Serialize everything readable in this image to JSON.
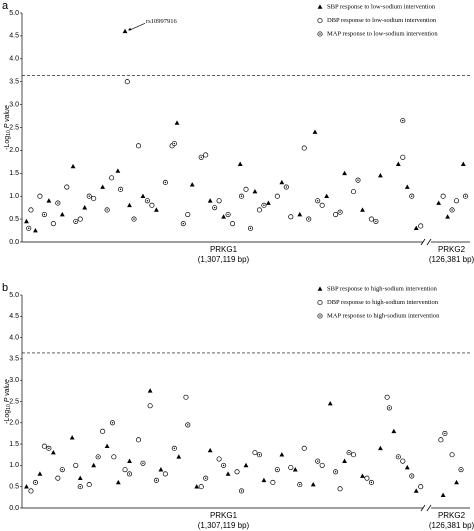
{
  "chart_data": [
    {
      "type": "scatter",
      "panel_label": "a",
      "ylabel": {
        "prefix": "-Log",
        "sub": "10",
        "main": "P value"
      },
      "xlim": [
        0,
        100
      ],
      "ylim": [
        0,
        5
      ],
      "yticks": [
        {
          "value": 0,
          "label": "0.0"
        },
        {
          "value": 0.5,
          "label": "0.5"
        },
        {
          "value": 1,
          "label": "1.0"
        },
        {
          "value": 1.5,
          "label": "1.5"
        },
        {
          "value": 2,
          "label": "2.0"
        },
        {
          "value": 2.5,
          "label": "2.5"
        },
        {
          "value": 3,
          "label": "3.0"
        },
        {
          "value": 3.5,
          "label": "3.5"
        },
        {
          "value": 4,
          "label": "4.0"
        },
        {
          "value": 4.5,
          "label": "4.5"
        },
        {
          "value": 5,
          "label": "5.0"
        }
      ],
      "threshold": 3.64,
      "genes": [
        {
          "name": "PRKG1",
          "size": "(1,307,119 bp)"
        },
        {
          "name": "PRKG2",
          "size": "(126,381 bp)"
        }
      ],
      "annotation": {
        "text": "rs10997916",
        "x": 23,
        "y": 4.6
      },
      "legend": "upper right",
      "series": [
        {
          "name": "SBP response to low-sodium intervention",
          "marker": "triangle",
          "color": "#000000",
          "x": [
            1,
            3,
            6,
            9,
            11.4,
            14,
            18,
            21.4,
            23,
            24,
            27,
            30,
            34.6,
            38,
            42,
            45,
            48.7,
            52,
            55,
            58,
            62,
            65.4,
            68,
            72,
            76,
            80,
            84,
            86,
            88,
            93,
            95,
            98.5
          ],
          "values": [
            0.45,
            0.25,
            0.9,
            0.6,
            1.65,
            0.75,
            1.2,
            1.55,
            4.6,
            0.8,
            1.0,
            0.7,
            2.6,
            1.25,
            0.9,
            0.55,
            1.7,
            1.1,
            0.85,
            1.3,
            0.6,
            2.4,
            1.0,
            1.5,
            0.7,
            1.45,
            1.7,
            1.2,
            0.3,
            0.85,
            0.55,
            1.7
          ]
        },
        {
          "name": "DBP response to low-sodium intervention",
          "marker": "circle",
          "color": "#000000",
          "x": [
            2,
            4,
            7,
            10,
            13,
            16,
            20,
            23.5,
            26,
            29,
            33.5,
            37,
            41,
            44,
            47,
            50,
            53,
            57,
            60,
            63,
            67,
            70,
            74,
            78,
            85,
            89,
            94,
            97
          ],
          "values": [
            0.7,
            1.0,
            0.4,
            1.2,
            0.5,
            0.95,
            1.4,
            3.5,
            2.1,
            0.8,
            2.1,
            0.6,
            1.9,
            0.9,
            0.4,
            1.15,
            0.7,
            1.0,
            0.55,
            2.05,
            0.8,
            0.6,
            1.1,
            0.5,
            1.85,
            0.35,
            1.0,
            0.9
          ]
        },
        {
          "name": "MAP response to low-sodium intervention",
          "marker": "dotted-circle",
          "color": "#000000",
          "x": [
            1.5,
            5,
            8,
            12,
            15,
            19,
            22,
            25,
            28,
            32,
            34,
            36,
            40,
            43,
            46,
            49,
            51,
            54,
            59,
            64,
            66,
            71,
            75,
            79,
            85,
            87,
            96,
            99
          ],
          "values": [
            0.3,
            0.6,
            0.85,
            0.45,
            1.0,
            0.7,
            1.15,
            0.5,
            0.9,
            1.3,
            2.15,
            0.4,
            1.85,
            0.75,
            0.6,
            1.0,
            0.3,
            0.8,
            1.2,
            0.5,
            0.9,
            0.65,
            1.35,
            0.45,
            2.65,
            1.0,
            0.7,
            1.0
          ]
        }
      ]
    },
    {
      "type": "scatter",
      "panel_label": "b",
      "ylabel": {
        "prefix": "-Log",
        "sub": "10",
        "main": "P value"
      },
      "xlim": [
        0,
        100
      ],
      "ylim": [
        0,
        5
      ],
      "yticks": [
        {
          "value": 0,
          "label": "0.0"
        },
        {
          "value": 0.5,
          "label": "0.5"
        },
        {
          "value": 1,
          "label": "1.0"
        },
        {
          "value": 1.5,
          "label": "1.5"
        },
        {
          "value": 2,
          "label": "2.0"
        },
        {
          "value": 2.5,
          "label": "2.5"
        },
        {
          "value": 3,
          "label": "3.0"
        },
        {
          "value": 3.5,
          "label": "3.5"
        },
        {
          "value": 4,
          "label": "4.0"
        },
        {
          "value": 4.5,
          "label": "4.5"
        },
        {
          "value": 5,
          "label": "5.0"
        }
      ],
      "threshold": 3.64,
      "genes": [
        {
          "name": "PRKG1",
          "size": "(1,307,119 bp)"
        },
        {
          "name": "PRKG2",
          "size": "(126,381 bp)"
        }
      ],
      "legend": "upper right",
      "series": [
        {
          "name": "SBP response to high-sodium intervention",
          "marker": "triangle",
          "color": "#000000",
          "x": [
            1,
            4,
            7,
            11.2,
            13,
            16,
            19,
            21.5,
            24,
            28.6,
            31,
            35,
            39,
            42,
            46,
            50,
            54,
            58,
            61,
            65,
            68.8,
            72,
            76,
            80,
            83,
            86,
            88,
            94,
            97
          ],
          "values": [
            0.5,
            0.8,
            1.3,
            1.65,
            0.7,
            1.0,
            1.45,
            0.6,
            1.1,
            2.75,
            0.9,
            1.2,
            0.5,
            1.35,
            0.8,
            1.0,
            0.65,
            1.25,
            0.9,
            0.55,
            2.45,
            1.1,
            0.75,
            1.4,
            1.8,
            0.95,
            0.4,
            0.3,
            0.6
          ]
        },
        {
          "name": "DBP response to high-sodium intervention",
          "marker": "circle",
          "color": "#000000",
          "x": [
            2,
            5,
            8,
            12,
            15,
            18,
            20.5,
            23,
            26,
            28.6,
            32,
            36.6,
            40,
            44,
            48,
            52,
            56,
            60,
            63,
            67,
            71,
            74,
            77,
            81.5,
            85,
            89,
            93.5,
            96
          ],
          "values": [
            0.4,
            1.45,
            0.7,
            1.0,
            0.55,
            1.8,
            1.2,
            0.9,
            1.6,
            2.4,
            0.8,
            2.6,
            0.5,
            1.15,
            0.85,
            1.3,
            0.6,
            0.95,
            1.4,
            1.0,
            0.45,
            1.25,
            0.7,
            2.6,
            1.1,
            0.5,
            1.6,
            1.25
          ]
        },
        {
          "name": "MAP response to high-sodium intervention",
          "marker": "dotted-circle",
          "color": "#000000",
          "x": [
            3,
            6,
            9,
            13,
            17,
            20.2,
            24,
            27,
            30,
            34,
            37,
            41,
            45,
            49,
            53,
            57,
            62,
            66,
            70,
            73,
            78,
            82,
            84,
            87,
            94.4,
            98
          ],
          "values": [
            0.6,
            1.4,
            0.9,
            0.5,
            1.2,
            2.0,
            0.8,
            1.05,
            0.65,
            1.4,
            1.95,
            0.7,
            1.0,
            0.4,
            1.25,
            0.9,
            0.55,
            1.1,
            0.85,
            1.3,
            0.6,
            2.35,
            1.2,
            0.75,
            1.75,
            0.9
          ]
        }
      ]
    }
  ]
}
